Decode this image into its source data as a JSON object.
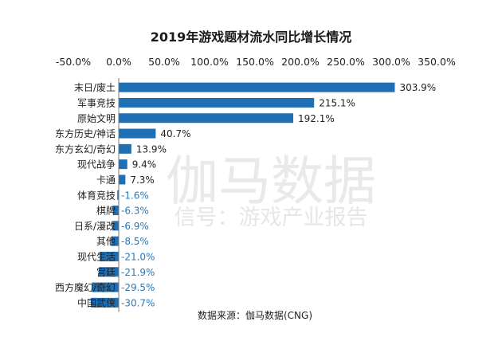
{
  "watermark": {
    "brand": "伽马数据",
    "account": "信号：游戏产业报告"
  },
  "chart_data": {
    "type": "bar",
    "orientation": "horizontal",
    "title": "2019年游戏题材流水同比增长情况",
    "source": "数据来源：伽马数据(CNG)",
    "xlim": [
      -50,
      350
    ],
    "x_ticks": [
      "-50.0%",
      "0.0%",
      "50.0%",
      "100.0%",
      "150.0%",
      "200.0%",
      "250.0%",
      "300.0%",
      "350.0%"
    ],
    "x_tick_values": [
      -50,
      0,
      50,
      100,
      150,
      200,
      250,
      300,
      350
    ],
    "axis_position": "top",
    "grid": false,
    "bar_color": "#1f6fb4",
    "negative_label_color": "#2a78b8",
    "categories": [
      "末日/废土",
      "军事竞技",
      "原始文明",
      "东方历史/神话",
      "东方玄幻/奇幻",
      "现代战争",
      "卡通",
      "体育竞技",
      "棋牌",
      "日系/漫改",
      "其他",
      "现代生活",
      "宫廷",
      "西方魔幻/奇幻",
      "中国武侠"
    ],
    "values": [
      303.9,
      215.1,
      192.1,
      40.7,
      13.9,
      9.4,
      7.3,
      -1.6,
      -6.3,
      -6.9,
      -8.5,
      -21.0,
      -21.9,
      -29.5,
      -30.7
    ],
    "value_labels": [
      "303.9%",
      "215.1%",
      "192.1%",
      "40.7%",
      "13.9%",
      "9.4%",
      "7.3%",
      "-1.6%",
      "-6.3%",
      "-6.9%",
      "-8.5%",
      "-21.0%",
      "-21.9%",
      "-29.5%",
      "-30.7%"
    ]
  }
}
